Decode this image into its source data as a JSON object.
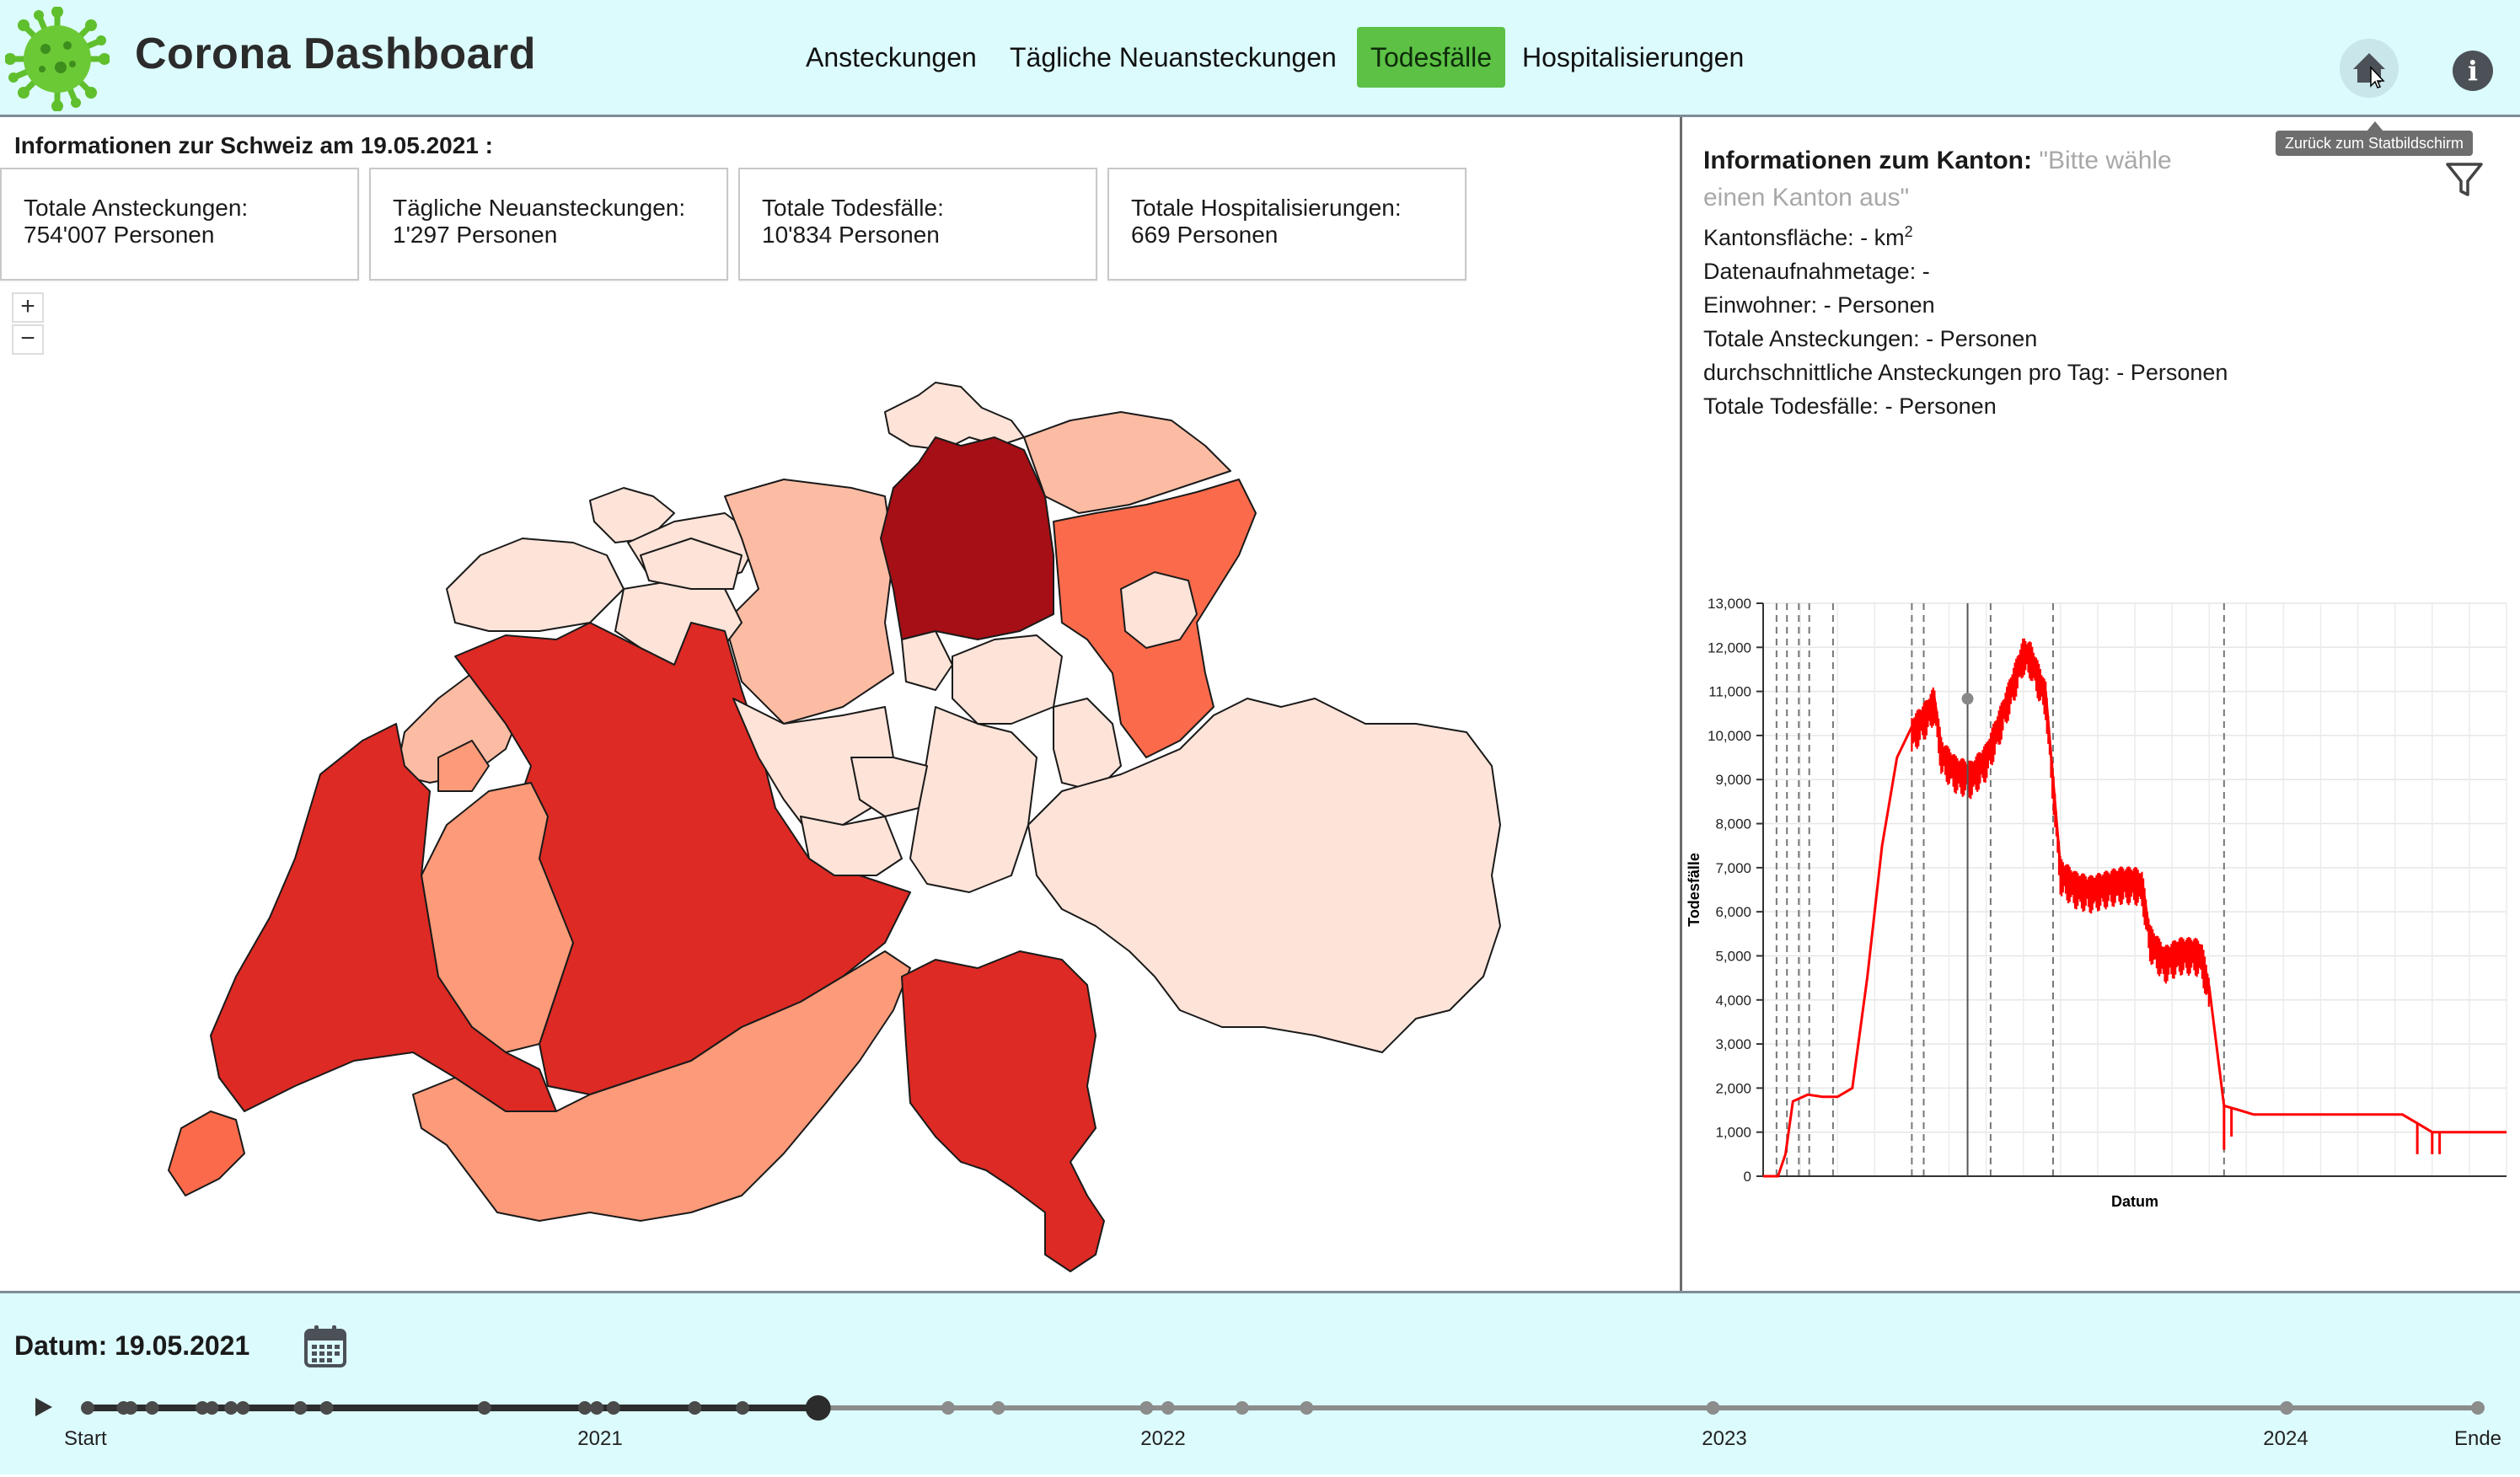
{
  "header": {
    "title": "Corona Dashboard",
    "nav": [
      {
        "label": "Ansteckungen",
        "active": false
      },
      {
        "label": "Tägliche Neuansteckungen",
        "active": false
      },
      {
        "label": "Todesfälle",
        "active": true
      },
      {
        "label": "Hospitalisierungen",
        "active": false
      }
    ],
    "home_icon": "home-icon",
    "info_icon": "info-icon",
    "info_glyph": "i",
    "tooltip": "Zurück zum Statbildschirm"
  },
  "switzerland": {
    "title": "Informationen zur Schweiz am 19.05.2021 :",
    "cards": [
      {
        "label": "Totale Ansteckungen:",
        "value": "754'007 Personen"
      },
      {
        "label": "Tägliche Neuansteckungen:",
        "value": "1'297 Personen"
      },
      {
        "label": "Totale Todesfälle:",
        "value": "10'834 Personen"
      },
      {
        "label": "Totale Hospitalisierungen:",
        "value": "669 Personen"
      }
    ],
    "zoom_in": "+",
    "zoom_out": "−"
  },
  "canton": {
    "title": "Informationen zum Kanton:",
    "placeholder": "\"Bitte wähle einen Kanton aus\"",
    "area": {
      "label": "Kantonsfläche: - km",
      "sup": "2"
    },
    "lines": [
      "Datenaufnahmetage: -",
      "Einwohner: - Personen",
      "Totale Ansteckungen: - Personen",
      "durchschnittliche Ansteckungen pro Tag: - Personen",
      "Totale Todesfälle: - Personen"
    ],
    "filter_icon": "filter-icon"
  },
  "chart_data": {
    "type": "line",
    "title": "",
    "xlabel": "Datum",
    "ylabel": "Todesfälle",
    "ylim": [
      0,
      13000
    ],
    "yticks": [
      0,
      1000,
      2000,
      3000,
      4000,
      5000,
      6000,
      7000,
      8000,
      9000,
      10000,
      11000,
      12000,
      13000
    ],
    "ytick_labels": [
      "0",
      "1,000",
      "2,000",
      "3,000",
      "4,000",
      "5,000",
      "6,000",
      "7,000",
      "8,000",
      "9,000",
      "10,000",
      "11,000",
      "12,000",
      "13,000"
    ],
    "series_color": "#ff0000",
    "grid": true,
    "x": [
      0,
      2,
      3,
      4,
      6,
      8,
      9,
      10,
      12,
      14,
      16,
      18,
      20,
      22,
      23,
      24,
      26,
      28,
      30,
      32,
      34,
      35,
      36,
      38,
      40,
      42,
      44,
      46,
      48,
      50,
      51,
      52,
      54,
      56,
      58,
      59,
      60,
      62,
      64,
      66,
      68,
      70,
      72,
      74,
      75,
      76,
      78,
      80,
      82,
      84,
      86,
      88,
      90,
      91,
      92,
      94,
      96,
      100
    ],
    "y": [
      0,
      0,
      500,
      1700,
      1850,
      1800,
      1800,
      1800,
      2000,
      4500,
      7500,
      9500,
      10200,
      10600,
      10900,
      9700,
      9300,
      9200,
      9600,
      10500,
      11500,
      12000,
      11900,
      11000,
      7000,
      6700,
      6600,
      6700,
      6800,
      6800,
      6700,
      5500,
      5000,
      5200,
      5200,
      5100,
      4300,
      1600,
      1500,
      1400,
      1400,
      1400,
      1400,
      1400,
      1400,
      1400,
      1400,
      1400,
      1400,
      1400,
      1400,
      1200,
      1000,
      1000,
      1000,
      1000,
      1000,
      1000
    ],
    "band": {
      "start": 20,
      "end": 60,
      "amplitude": 650
    },
    "dashed_x": [
      1.8,
      3.2,
      4.8,
      6.2,
      9.4,
      20.0,
      21.6,
      30.6,
      39.0,
      62.0
    ],
    "current_x": 27.5,
    "current_y": 10834
  },
  "timeline": {
    "date_label": "Datum: 19.05.2021",
    "calendar_icon": "calendar-icon",
    "play_icon": "play-icon",
    "ticks": [
      "Start",
      "2021",
      "2022",
      "2023",
      "2024",
      "Ende"
    ],
    "progress": 0.3056,
    "event_dots": [
      0.0,
      0.015,
      0.018,
      0.027,
      0.048,
      0.052,
      0.06,
      0.065,
      0.089,
      0.1,
      0.166,
      0.208,
      0.213,
      0.22,
      0.254,
      0.274,
      0.36,
      0.381,
      0.443,
      0.452,
      0.483,
      0.51,
      0.68,
      0.92,
      1.0
    ]
  },
  "map": {
    "scale_colors": [
      "#fee3d8",
      "#fcbca4",
      "#fc9a79",
      "#fb6b4b",
      "#dd2a24",
      "#a50f15"
    ],
    "border_color": "#000000"
  }
}
